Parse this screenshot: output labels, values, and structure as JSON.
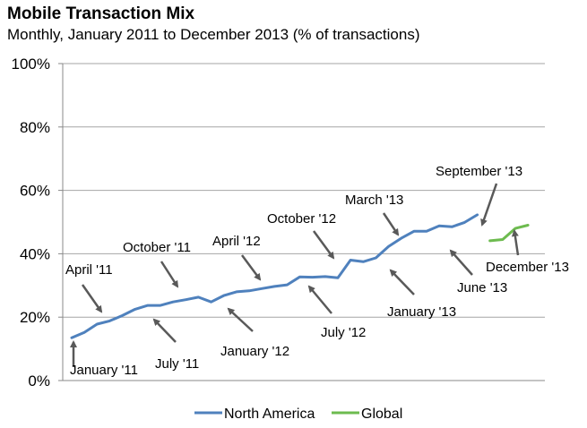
{
  "chart_data": {
    "type": "line",
    "title": "Mobile Transaction Mix",
    "subtitle": "Monthly, January 2011 to December 2013 (% of transactions)",
    "xlabel": "",
    "ylabel": "",
    "ylim": [
      0,
      100
    ],
    "y_ticks": [
      0,
      20,
      40,
      60,
      80,
      100
    ],
    "y_tick_labels": [
      "0%",
      "20%",
      "40%",
      "60%",
      "80%",
      "100%"
    ],
    "grid": true,
    "x_months": 36,
    "legend_position": "bottom",
    "series": [
      {
        "name": "North America",
        "color": "#4F81BD",
        "start_month": 0,
        "values": [
          13.5,
          15.2,
          17.8,
          18.8,
          20.5,
          22.5,
          23.7,
          23.7,
          24.8,
          25.5,
          26.3,
          24.8,
          26.8,
          28.0,
          28.3,
          29.0,
          29.7,
          30.2,
          32.7,
          32.6,
          32.8,
          32.4,
          38.0,
          37.5,
          38.7,
          42.3,
          44.9,
          47.1,
          47.1,
          48.8,
          48.5,
          49.9,
          52.3
        ]
      },
      {
        "name": "Global",
        "color": "#6DBB4F",
        "start_month": 33,
        "values": [
          44.1,
          44.5,
          48.0,
          49.0
        ]
      }
    ],
    "annotations": [
      {
        "text": "January '11",
        "month": 0
      },
      {
        "text": "April '11",
        "month": 3
      },
      {
        "text": "July '11",
        "month": 6
      },
      {
        "text": "October '11",
        "month": 9
      },
      {
        "text": "January  '12",
        "month": 12
      },
      {
        "text": "April '12",
        "month": 15
      },
      {
        "text": "July '12",
        "month": 18
      },
      {
        "text": "October '12",
        "month": 21
      },
      {
        "text": "January '13",
        "month": 24
      },
      {
        "text": "March '13",
        "month": 26
      },
      {
        "text": "June '13",
        "month": 29
      },
      {
        "text": "September '13",
        "month": 32
      },
      {
        "text": "December '13",
        "month": 35
      }
    ]
  }
}
